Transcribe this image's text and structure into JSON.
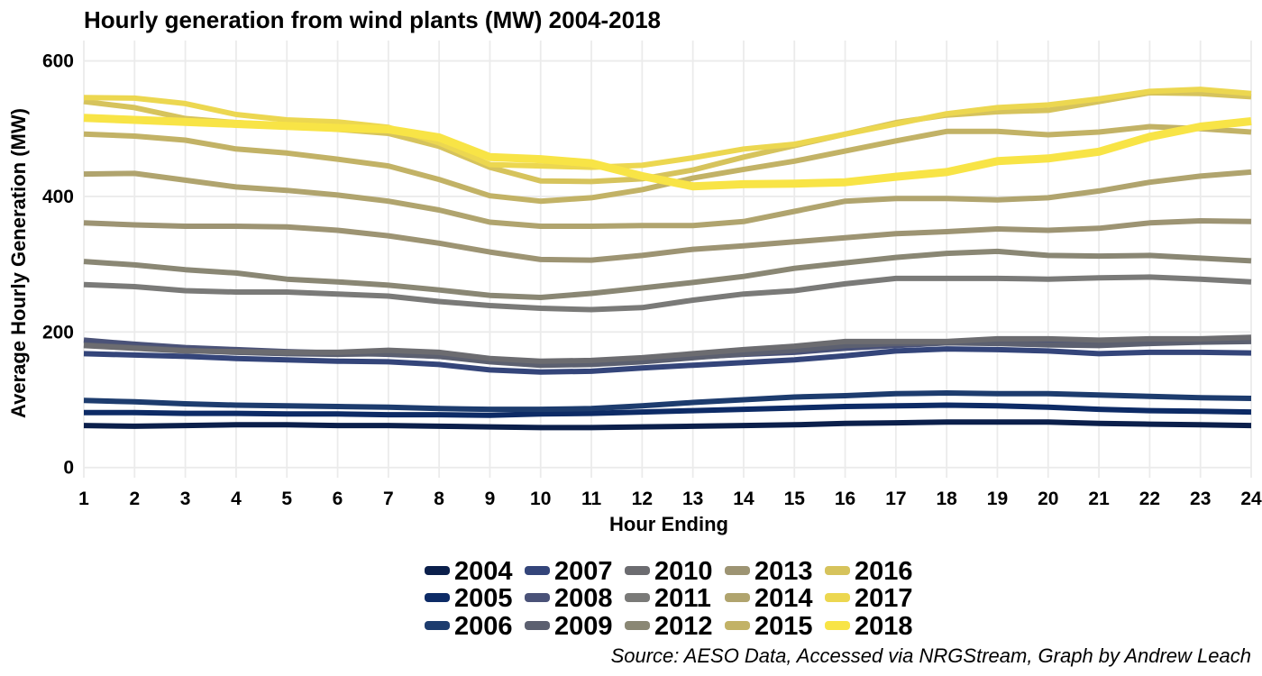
{
  "chart_data": {
    "type": "line",
    "title": "Hourly generation from wind plants (MW) 2004-2018",
    "xlabel": "Hour Ending",
    "ylabel": "Average Hourly Generation (MW)",
    "caption": "Source: AESO Data, Accessed via NRGStream, Graph by Andrew Leach",
    "x": [
      1,
      2,
      3,
      4,
      5,
      6,
      7,
      8,
      9,
      10,
      11,
      12,
      13,
      14,
      15,
      16,
      17,
      18,
      19,
      20,
      21,
      22,
      23,
      24
    ],
    "x_ticks": [
      "1",
      "2",
      "3",
      "4",
      "5",
      "6",
      "7",
      "8",
      "9",
      "10",
      "11",
      "12",
      "13",
      "14",
      "15",
      "16",
      "17",
      "18",
      "19",
      "20",
      "21",
      "22",
      "23",
      "24"
    ],
    "xlim": [
      1,
      24
    ],
    "y_ticks": [
      "0",
      "200",
      "400",
      "600"
    ],
    "ylim": [
      -15,
      630
    ],
    "grid": true,
    "legend_position": "bottom",
    "series": [
      {
        "name": "2004",
        "color": "#0b1f4b",
        "values": [
          62,
          61,
          62,
          63,
          63,
          62,
          62,
          61,
          60,
          59,
          59,
          60,
          61,
          62,
          63,
          65,
          66,
          67,
          67,
          67,
          65,
          64,
          63,
          62
        ]
      },
      {
        "name": "2005",
        "color": "#0d2b66",
        "values": [
          81,
          81,
          80,
          80,
          79,
          79,
          78,
          78,
          77,
          79,
          80,
          82,
          84,
          86,
          88,
          90,
          91,
          92,
          91,
          89,
          86,
          84,
          83,
          82
        ]
      },
      {
        "name": "2006",
        "color": "#1d3c6e",
        "values": [
          99,
          97,
          94,
          92,
          91,
          90,
          89,
          87,
          86,
          86,
          87,
          91,
          96,
          100,
          104,
          106,
          109,
          110,
          109,
          109,
          107,
          105,
          103,
          102
        ]
      },
      {
        "name": "2007",
        "color": "#34457a",
        "values": [
          168,
          166,
          164,
          161,
          159,
          157,
          156,
          152,
          144,
          141,
          142,
          147,
          151,
          155,
          159,
          165,
          172,
          175,
          174,
          172,
          168,
          170,
          170,
          169
        ]
      },
      {
        "name": "2008",
        "color": "#4a5278",
        "values": [
          188,
          182,
          177,
          174,
          171,
          169,
          167,
          164,
          158,
          152,
          154,
          158,
          163,
          167,
          170,
          176,
          180,
          184,
          186,
          185,
          184,
          185,
          187,
          188
        ]
      },
      {
        "name": "2009",
        "color": "#5c6070",
        "values": [
          181,
          177,
          173,
          170,
          168,
          167,
          168,
          164,
          156,
          151,
          152,
          156,
          162,
          168,
          173,
          180,
          183,
          184,
          183,
          181,
          180,
          183,
          185,
          186
        ]
      },
      {
        "name": "2010",
        "color": "#6c6c70",
        "values": [
          180,
          176,
          172,
          171,
          170,
          170,
          173,
          170,
          161,
          157,
          158,
          162,
          168,
          174,
          179,
          186,
          186,
          186,
          190,
          190,
          188,
          190,
          190,
          192
        ]
      },
      {
        "name": "2011",
        "color": "#7a7a78",
        "values": [
          270,
          267,
          261,
          259,
          259,
          256,
          253,
          245,
          239,
          235,
          233,
          236,
          247,
          256,
          261,
          271,
          279,
          279,
          279,
          278,
          280,
          281,
          278,
          274
        ]
      },
      {
        "name": "2012",
        "color": "#8a8774",
        "values": [
          304,
          299,
          292,
          287,
          278,
          274,
          269,
          262,
          254,
          251,
          257,
          265,
          273,
          282,
          294,
          302,
          310,
          316,
          319,
          313,
          312,
          313,
          309,
          305
        ]
      },
      {
        "name": "2013",
        "color": "#9d9473",
        "values": [
          361,
          358,
          356,
          356,
          355,
          350,
          342,
          331,
          318,
          307,
          306,
          313,
          322,
          327,
          333,
          339,
          345,
          348,
          352,
          350,
          353,
          361,
          364,
          363
        ]
      },
      {
        "name": "2014",
        "color": "#b0a46e",
        "values": [
          433,
          434,
          424,
          414,
          409,
          402,
          393,
          380,
          362,
          356,
          356,
          357,
          357,
          363,
          378,
          393,
          397,
          397,
          395,
          398,
          408,
          421,
          430,
          436
        ]
      },
      {
        "name": "2015",
        "color": "#c2b266",
        "values": [
          492,
          489,
          483,
          470,
          464,
          455,
          445,
          425,
          401,
          393,
          398,
          410,
          427,
          440,
          452,
          467,
          482,
          496,
          496,
          491,
          495,
          503,
          500,
          495
        ]
      },
      {
        "name": "2016",
        "color": "#d6c35c",
        "values": [
          540,
          531,
          515,
          509,
          505,
          499,
          493,
          474,
          443,
          423,
          422,
          426,
          439,
          458,
          475,
          492,
          509,
          520,
          525,
          527,
          540,
          553,
          552,
          547
        ]
      },
      {
        "name": "2017",
        "color": "#ecd750",
        "values": [
          546,
          545,
          537,
          521,
          513,
          510,
          502,
          479,
          447,
          445,
          443,
          446,
          457,
          470,
          477,
          492,
          507,
          522,
          531,
          535,
          544,
          555,
          558,
          552
        ]
      },
      {
        "name": "2018",
        "color": "#f8e446",
        "values": [
          516,
          513,
          510,
          507,
          504,
          501,
          499,
          487,
          458,
          455,
          449,
          430,
          415,
          418,
          419,
          421,
          429,
          436,
          452,
          456,
          466,
          488,
          503,
          511
        ]
      }
    ]
  }
}
